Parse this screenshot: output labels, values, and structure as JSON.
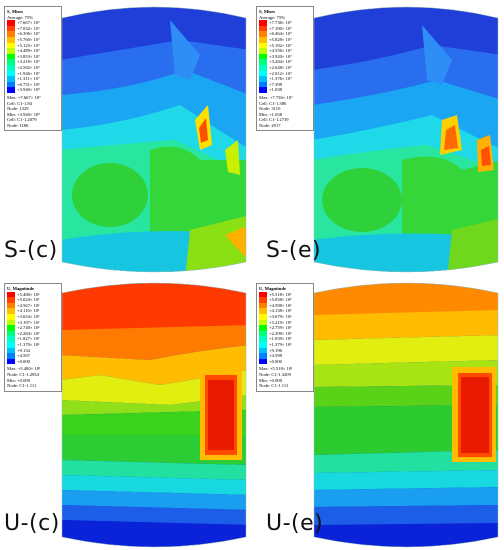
{
  "panels": [
    {
      "id": "s-c",
      "caption": "S-(c)",
      "legend": {
        "title": "S, Mises",
        "subtitle": "Average: 75%",
        "entries": [
          "+7.667× 10⁷",
          "+7.032× 10⁷",
          "+6.396× 10⁷",
          "+5.760× 10⁷",
          "+5.125× 10⁷",
          "+4.489× 10⁷",
          "+3.853× 10⁷",
          "+3.218× 10⁷",
          "+2.582× 10⁷",
          "+1.946× 10⁷",
          "+1.311× 10⁷",
          "+6.751× 10⁶",
          "+3.940× 10⁵"
        ],
        "info": [
          "Max: +7.667× 10⁷",
          "Cell: C1-1.84",
          "Node: 1329",
          "Min: +3.940× 10⁵",
          "Cell: C1-1.2079",
          "Node: 1186"
        ]
      }
    },
    {
      "id": "s-e",
      "caption": "S-(e)",
      "legend": {
        "title": "S, Mises",
        "subtitle": "Average: 75%",
        "entries": [
          "+7.736× 10⁷",
          "+7.100× 10⁷",
          "+6.464× 10⁷",
          "+5.828× 10⁷",
          "+5.192× 10⁷",
          "+4.556× 10⁷",
          "+3.920× 10⁷",
          "+3.284× 10⁷",
          "+2.648× 10⁷",
          "+2.012× 10⁷",
          "+1.376× 10⁷",
          "+7.398",
          "+1.038"
        ],
        "info": [
          "Max: +7.736× 10⁷",
          "Cell: C1-1.386",
          "Node: 3110",
          "Min: +1.038",
          "Cell: C1-1.2739",
          "Node: 2917"
        ]
      }
    },
    {
      "id": "u-c",
      "caption": "U-(c)",
      "legend": {
        "title": "U, Magnitude",
        "subtitle": "",
        "entries": [
          "+5.480× 10¹",
          "+5.024× 10¹",
          "+4.567× 10¹",
          "+4.110× 10¹",
          "+3.654× 10¹",
          "+3.197× 10¹",
          "+2.740× 10¹",
          "+2.284× 10¹",
          "+1.827× 10¹",
          "+1.370× 10¹",
          "+9.134",
          "+4.567",
          "+0.000"
        ],
        "info": [
          "Max: +5.480× 10¹",
          "Node: C1-1.2934",
          "Min: +0.000",
          "Node: C1-1.111"
        ]
      }
    },
    {
      "id": "u-e",
      "caption": "U-(e)",
      "legend": {
        "title": "U, Magnitude",
        "subtitle": "",
        "entries": [
          "+5.518× 10¹",
          "+5.058× 10¹",
          "+4.598× 10¹",
          "+4.138× 10¹",
          "+3.679× 10¹",
          "+3.219× 10¹",
          "+2.759× 10¹",
          "+2.299× 10¹",
          "+1.839× 10¹",
          "+1.379× 10¹",
          "+9.196",
          "+4.598",
          "+0.000"
        ],
        "info": [
          "Max: +5.518× 10¹",
          "Node: C1-1.3209",
          "Min: +0.000",
          "Node: C1-1.111"
        ]
      }
    }
  ],
  "colors": {
    "contour_scale": [
      "#ff0000",
      "#ff4000",
      "#ff8000",
      "#ffbf00",
      "#ffff00",
      "#bfff00",
      "#00ff00",
      "#00ff80",
      "#00ffc0",
      "#00ffff",
      "#00bfff",
      "#0080ff",
      "#0000ff"
    ]
  }
}
